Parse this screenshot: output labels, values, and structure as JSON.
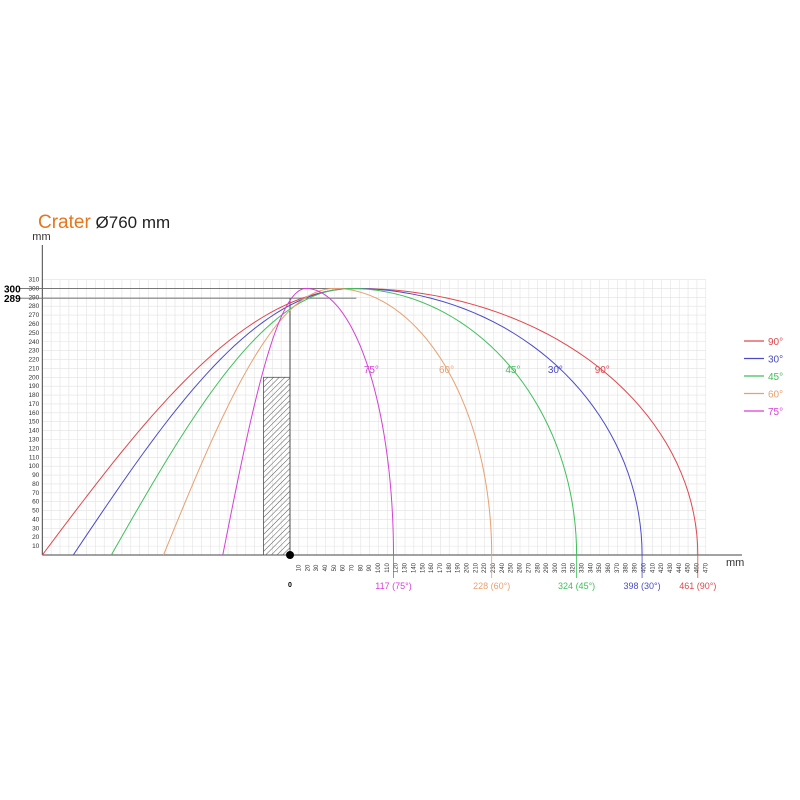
{
  "title": {
    "brand": "Crater",
    "rest": "Ø760 mm",
    "brand_color": "#e8751a"
  },
  "chart_data": {
    "type": "line",
    "xlabel": "mm",
    "ylabel": "mm",
    "xlim": [
      -280,
      470
    ],
    "ylim": [
      0,
      310
    ],
    "grid": true,
    "legend_placement": "right",
    "origin_label": "0",
    "x_ticks": [
      10,
      20,
      30,
      40,
      50,
      60,
      70,
      80,
      90,
      100,
      110,
      120,
      130,
      140,
      150,
      160,
      170,
      180,
      190,
      200,
      210,
      220,
      230,
      240,
      250,
      260,
      270,
      280,
      290,
      300,
      310,
      320,
      330,
      340,
      350,
      360,
      370,
      380,
      390,
      400,
      410,
      420,
      430,
      440,
      450,
      460,
      470
    ],
    "y_ticks": [
      10,
      20,
      30,
      40,
      50,
      60,
      70,
      80,
      90,
      100,
      110,
      120,
      130,
      140,
      150,
      160,
      170,
      180,
      190,
      200,
      210,
      220,
      230,
      240,
      250,
      260,
      270,
      280,
      290,
      300,
      310
    ],
    "y_marks": [
      "300",
      "289"
    ],
    "y_mark_values": [
      300,
      289
    ],
    "source_height": 289,
    "peak_height": 300,
    "post": {
      "x_from": -30,
      "x_to": 0,
      "height": 200
    },
    "series": [
      {
        "name": "90°",
        "label": "90°",
        "color": "#e0474c",
        "reach": 461,
        "reach_label": "461 (90°)",
        "left_end": -280,
        "peak_x": 75,
        "label_x": 353,
        "label_y": 205
      },
      {
        "name": "30°",
        "label": "30°",
        "color": "#4b4bc8",
        "reach": 398,
        "reach_label": "398 (30°)",
        "left_end": -245,
        "peak_x": 72,
        "label_x": 300,
        "label_y": 205
      },
      {
        "name": "45°",
        "label": "45°",
        "color": "#3fbf5a",
        "reach": 324,
        "reach_label": "324 (45°)",
        "left_end": -202,
        "peak_x": 68,
        "label_x": 252,
        "label_y": 205
      },
      {
        "name": "60°",
        "label": "60°",
        "color": "#e8a070",
        "reach": 228,
        "reach_label": "228 (60°)",
        "left_end": -143,
        "peak_x": 50,
        "label_x": 177,
        "label_y": 205
      },
      {
        "name": "75°",
        "label": "75°",
        "color": "#d63fd6",
        "reach": 117,
        "reach_label": "117 (75°)",
        "left_end": -76,
        "peak_x": 18,
        "label_x": 92,
        "label_y": 205
      }
    ]
  }
}
